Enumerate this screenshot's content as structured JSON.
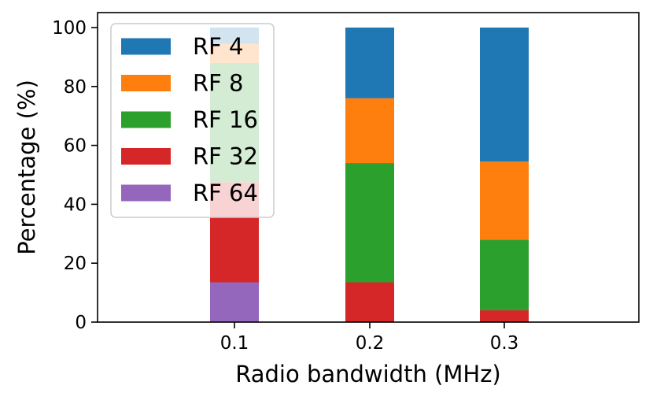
{
  "chart_data": {
    "type": "bar",
    "stacked": true,
    "categories": [
      "0.1",
      "0.2",
      "0.3"
    ],
    "xlabel": "Radio bandwidth (MHz)",
    "ylabel": "Percentage (%)",
    "ylim": [
      0,
      100
    ],
    "yticks": [
      0,
      20,
      40,
      60,
      80,
      100
    ],
    "grid": false,
    "legend_position": "top-left",
    "series": [
      {
        "name": "RF 64",
        "color": "#9467bd",
        "values": [
          13.5,
          0,
          0
        ]
      },
      {
        "name": "RF 32",
        "color": "#d62728",
        "values": [
          34,
          13.5,
          4
        ]
      },
      {
        "name": "RF 16",
        "color": "#2ca02c",
        "values": [
          40.5,
          40.5,
          24
        ]
      },
      {
        "name": "RF 8",
        "color": "#ff7f0e",
        "values": [
          6.5,
          22,
          26.5
        ]
      },
      {
        "name": "RF 4",
        "color": "#1f77b4",
        "values": [
          5.5,
          24,
          45.5
        ]
      }
    ],
    "legend_order": [
      "RF 4",
      "RF 8",
      "RF 16",
      "RF 32",
      "RF 64"
    ]
  }
}
